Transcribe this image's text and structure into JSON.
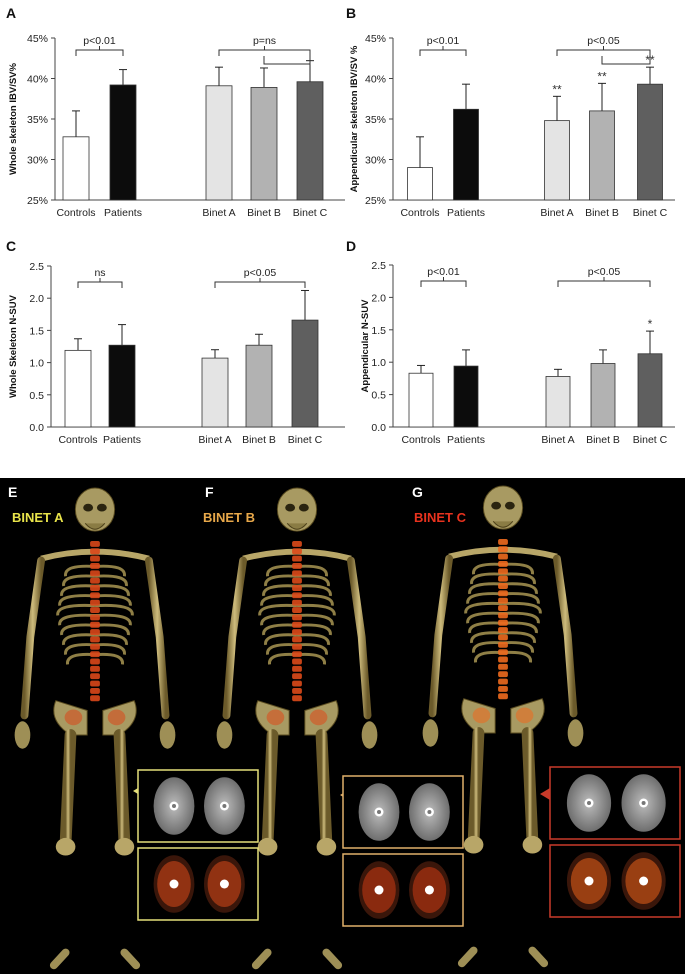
{
  "panels": [
    {
      "letter": "A",
      "ylabel": "Whole skeleton IBV/SV%"
    },
    {
      "letter": "B",
      "ylabel": "Appendicular skeleton IBV/SV %"
    },
    {
      "letter": "C",
      "ylabel": "Whole Skeleton N-SUV"
    },
    {
      "letter": "D",
      "ylabel": "Appendicular N-SUV"
    },
    {
      "letter": "E",
      "label": "BINET A",
      "color": "#e8e34a"
    },
    {
      "letter": "F",
      "label": "BINET B",
      "color": "#e8a84a"
    },
    {
      "letter": "G",
      "label": "BINET C",
      "color": "#e8321e"
    }
  ],
  "bar_colors": [
    "#ffffff",
    "#0c0c0c",
    "#e4e4e4",
    "#b2b2b2",
    "#5f5f5f"
  ],
  "image_panel": {
    "background": "#000000",
    "frame_colors": [
      "#e6e07a",
      "#e0b06a",
      "#c93a2a"
    ]
  },
  "chart_data": [
    {
      "type": "bar",
      "panel": "A",
      "categories": [
        "Controls",
        "Patients",
        "Binet A",
        "Binet B",
        "Binet C"
      ],
      "values": [
        32.8,
        39.2,
        39.1,
        38.9,
        39.6
      ],
      "errors": [
        3.2,
        1.9,
        2.3,
        2.4,
        2.6
      ],
      "ylim": [
        25,
        45
      ],
      "yticks": [
        "25%",
        "30%",
        "35%",
        "40%",
        "45%"
      ],
      "ylabel": "Whole skeleton IBV/SV%",
      "annotations": [
        {
          "text": "p<0.01",
          "between": [
            0,
            1
          ]
        },
        {
          "text": "p=ns",
          "between": [
            2,
            4
          ]
        }
      ],
      "markers": [
        "",
        "",
        "",
        "",
        ""
      ]
    },
    {
      "type": "bar",
      "panel": "B",
      "categories": [
        "Controls",
        "Patients",
        "Binet A",
        "Binet B",
        "Binet C"
      ],
      "values": [
        29.0,
        36.2,
        34.8,
        36.0,
        39.3
      ],
      "errors": [
        3.8,
        3.1,
        3.0,
        3.4,
        2.1
      ],
      "ylim": [
        25,
        45
      ],
      "yticks": [
        "25%",
        "30%",
        "35%",
        "40%",
        "45%"
      ],
      "ylabel": "Appendicular skeleton IBV/SV %",
      "annotations": [
        {
          "text": "p<0.01",
          "between": [
            0,
            1
          ]
        },
        {
          "text": "p<0.05",
          "between": [
            2,
            4
          ]
        }
      ],
      "markers": [
        "",
        "",
        "**",
        "**",
        "**"
      ]
    },
    {
      "type": "bar",
      "panel": "C",
      "categories": [
        "Controls",
        "Patients",
        "Binet A",
        "Binet B",
        "Binet C"
      ],
      "values": [
        1.19,
        1.27,
        1.07,
        1.27,
        1.66
      ],
      "errors": [
        0.18,
        0.32,
        0.13,
        0.17,
        0.46
      ],
      "ylim": [
        0,
        2.5
      ],
      "yticks": [
        "0.0",
        "0.5",
        "1.0",
        "1.5",
        "2.0",
        "2.5"
      ],
      "ylabel": "Whole Skeleton N-SUV",
      "annotations": [
        {
          "text": "ns",
          "between": [
            0,
            1
          ]
        },
        {
          "text": "p<0.05",
          "between": [
            2,
            4
          ]
        }
      ],
      "markers": [
        "",
        "",
        "",
        "",
        ""
      ]
    },
    {
      "type": "bar",
      "panel": "D",
      "categories": [
        "Controls",
        "Patients",
        "Binet A",
        "Binet B",
        "Binet C"
      ],
      "values": [
        0.83,
        0.94,
        0.78,
        0.98,
        1.13
      ],
      "errors": [
        0.12,
        0.25,
        0.11,
        0.21,
        0.35
      ],
      "ylim": [
        0,
        2.5
      ],
      "yticks": [
        "0.0",
        "0.5",
        "1.0",
        "1.5",
        "2.0",
        "2.5"
      ],
      "ylabel": "Appendicular N-SUV",
      "annotations": [
        {
          "text": "p<0.01",
          "between": [
            0,
            1
          ]
        },
        {
          "text": "p<0.05",
          "between": [
            2,
            4
          ]
        }
      ],
      "markers": [
        "",
        "",
        "",
        "",
        "*"
      ]
    }
  ]
}
